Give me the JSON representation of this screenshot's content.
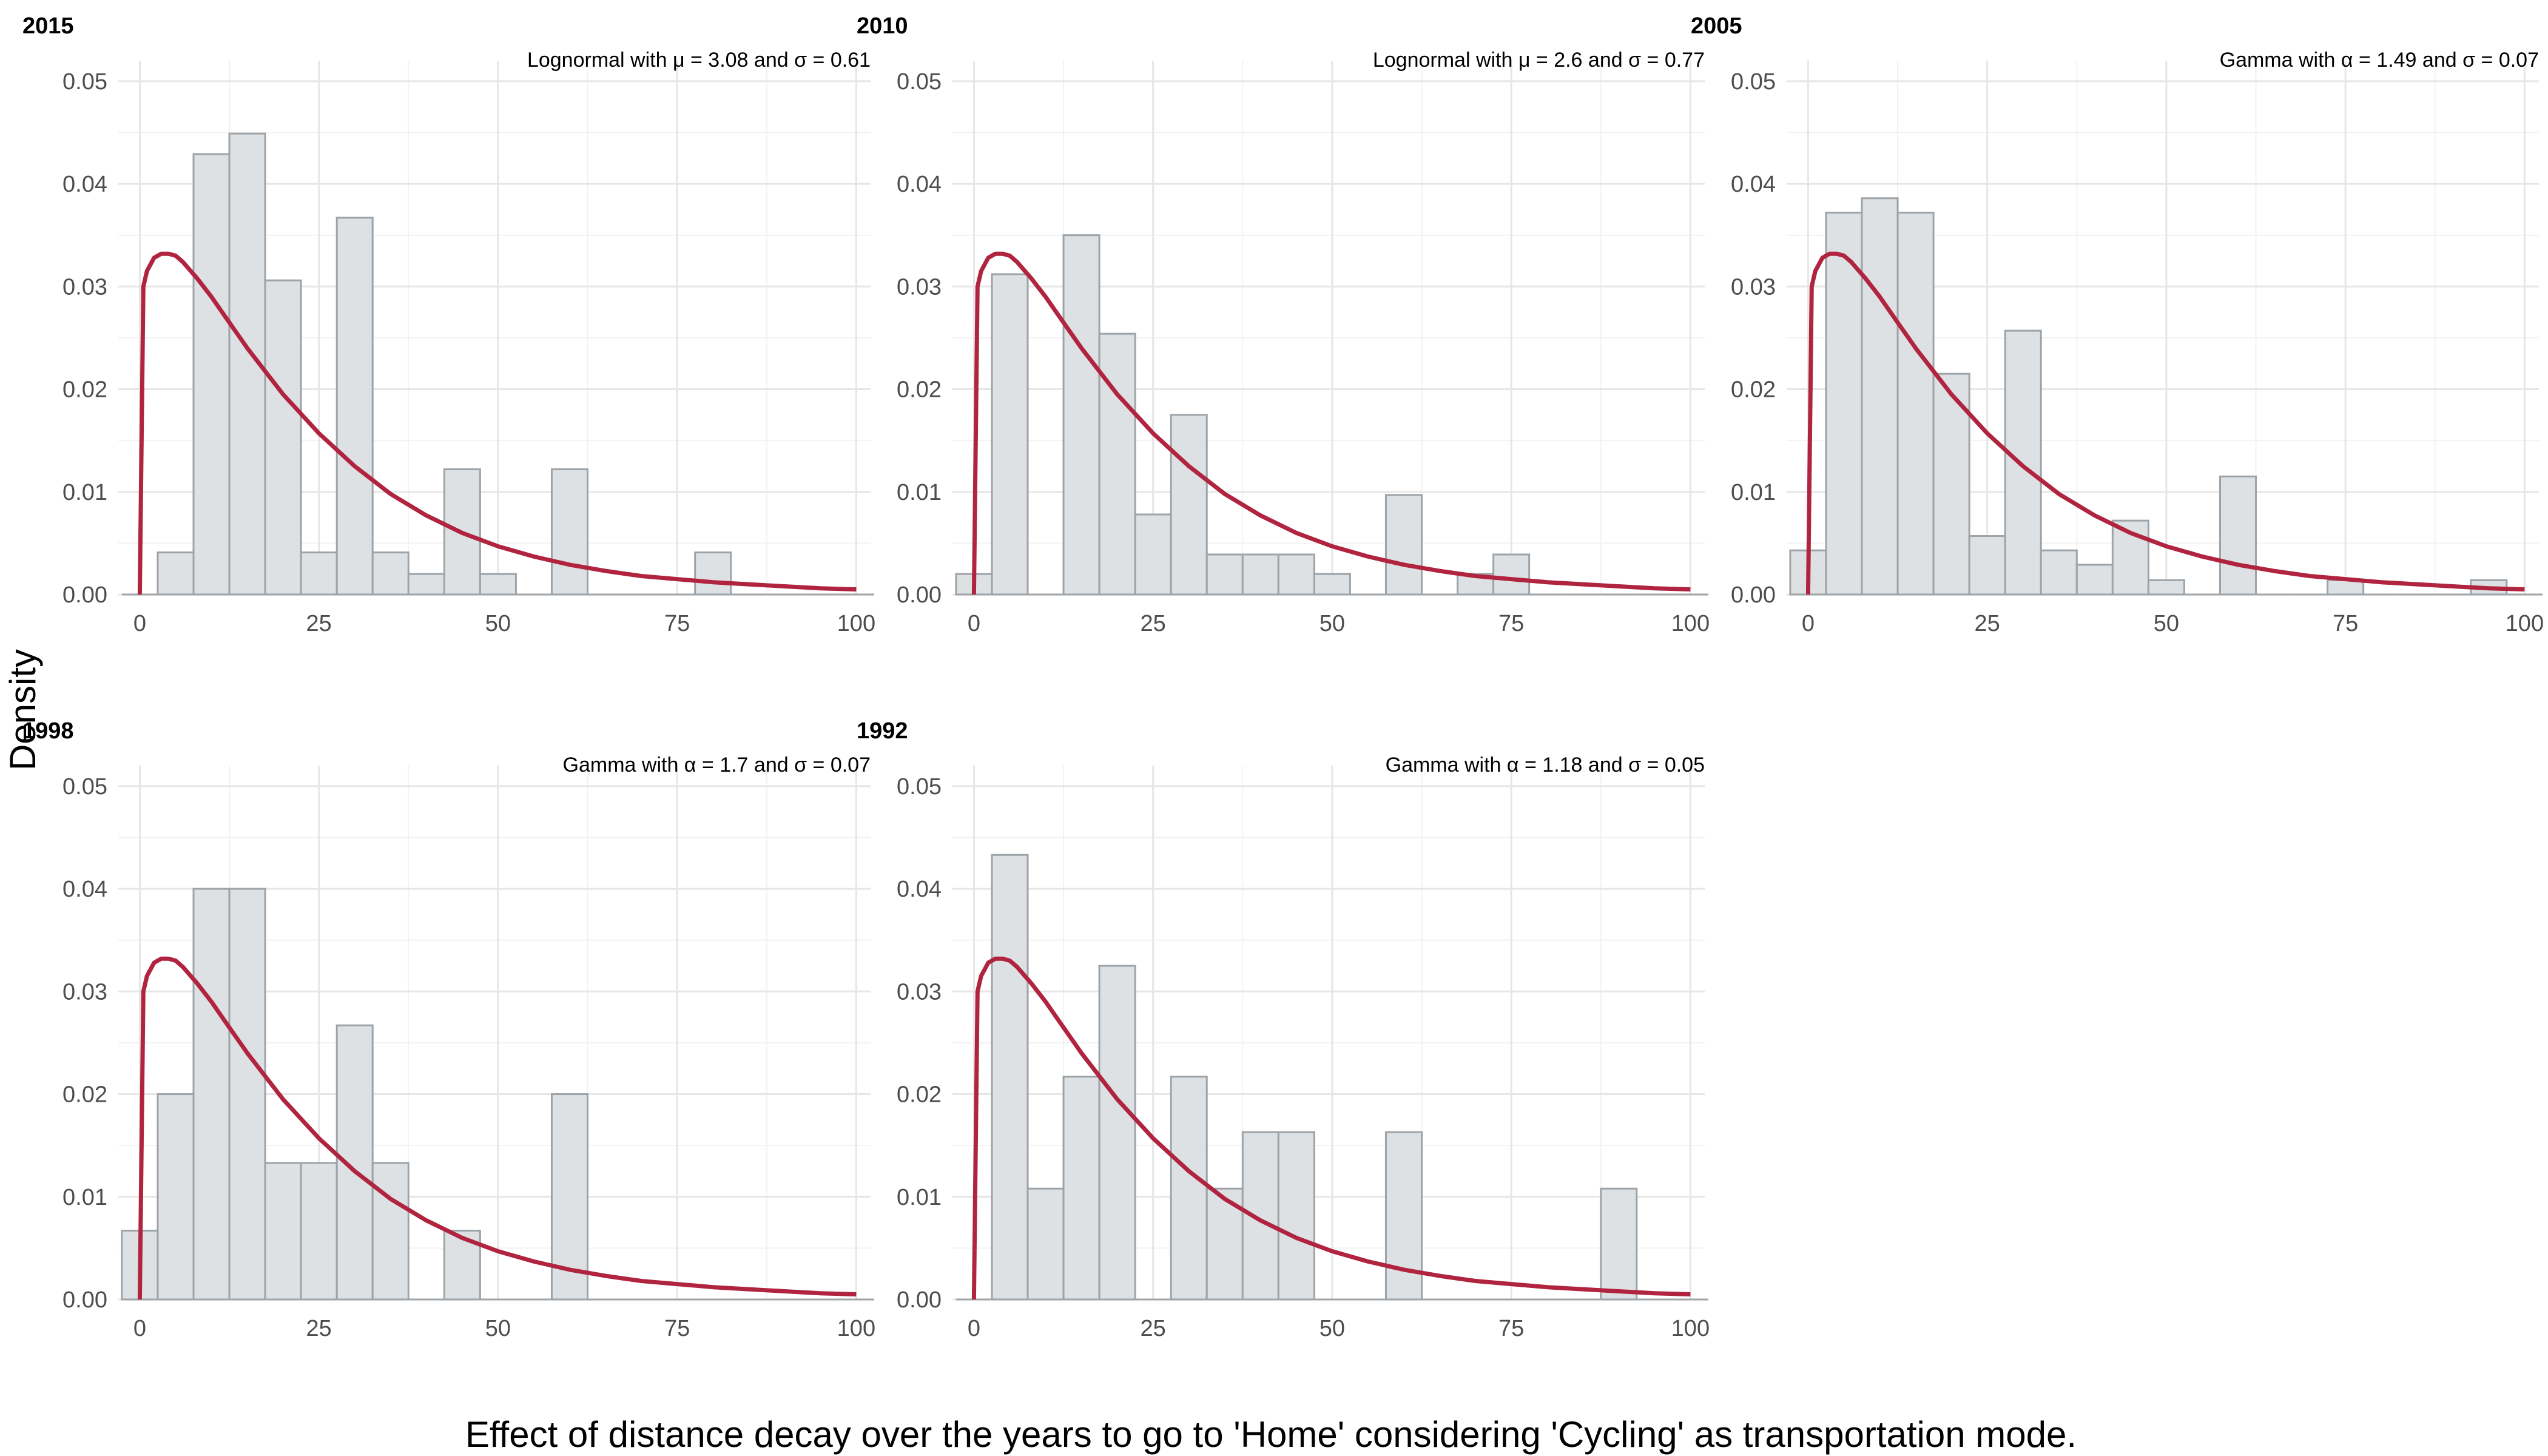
{
  "chart_data": {
    "type": "bar",
    "layout": "facets, 2 rows by 3 columns",
    "xlabel": "Effect of distance decay over the years to go to 'Home' considering 'Cycling' as transportation mode.",
    "ylabel": "Density",
    "xlim": [
      -3,
      102
    ],
    "ylim": [
      0,
      0.052
    ],
    "xticks": [
      0,
      25,
      50,
      75,
      100
    ],
    "xtick_labels": [
      "0",
      "25",
      "50",
      "75",
      "100"
    ],
    "yticks": [
      0,
      0.01,
      0.02,
      0.03,
      0.04,
      0.05
    ],
    "ytick_labels": [
      "0.00",
      "0.01",
      "0.02",
      "0.03",
      "0.04",
      "0.05"
    ],
    "grid": true,
    "bin_width": 5,
    "bin_starts": [
      -2.5,
      2.5,
      7.5,
      12.5,
      17.5,
      22.5,
      27.5,
      32.5,
      37.5,
      42.5,
      47.5,
      52.5,
      57.5,
      62.5,
      67.5,
      72.5,
      77.5,
      82.5,
      87.5,
      92.5,
      97.5
    ],
    "bar_color": "#dde1e3",
    "bar_edge_color": "#9da3a7",
    "curve_color": "#b0243f",
    "curve_x": [
      0,
      0.5,
      1,
      2,
      3,
      4,
      5,
      6,
      8,
      10,
      12,
      15,
      20,
      25,
      30,
      35,
      40,
      45,
      50,
      55,
      60,
      65,
      70,
      75,
      80,
      85,
      90,
      95,
      100
    ],
    "curve_y": [
      0,
      0.03,
      0.0315,
      0.0328,
      0.0332,
      0.0332,
      0.033,
      0.0324,
      0.0308,
      0.029,
      0.027,
      0.024,
      0.0195,
      0.0157,
      0.0125,
      0.0098,
      0.0077,
      0.006,
      0.0047,
      0.0037,
      0.0029,
      0.0023,
      0.0018,
      0.0015,
      0.0012,
      0.001,
      0.0008,
      0.0006,
      0.0005
    ],
    "panels": [
      {
        "title": "2015",
        "annotation": "Lognormal with μ = 3.08 and σ = 0.61",
        "values": [
          0,
          0.0041,
          0.0429,
          0.0449,
          0.0306,
          0.0041,
          0.0367,
          0.0041,
          0.002,
          0.0122,
          0.002,
          0,
          0.0122,
          0,
          0,
          0,
          0.0041,
          0,
          0,
          0,
          0
        ]
      },
      {
        "title": "2010",
        "annotation": "Lognormal with μ = 2.6 and σ = 0.77",
        "values": [
          0.002,
          0.0312,
          0,
          0.035,
          0.0254,
          0.0078,
          0.0175,
          0.0039,
          0.0039,
          0.0039,
          0.002,
          0,
          0.0097,
          0,
          0.002,
          0.0039,
          0,
          0,
          0,
          0,
          0
        ]
      },
      {
        "title": "2005",
        "annotation": "Gamma with α = 1.49 and σ = 0.07",
        "values": [
          0.0043,
          0.0372,
          0.0386,
          0.0372,
          0.0215,
          0.0057,
          0.0257,
          0.0043,
          0.0029,
          0.0072,
          0.0014,
          0,
          0.0115,
          0,
          0,
          0.0014,
          0,
          0,
          0,
          0.0014,
          0
        ]
      },
      {
        "title": "1998",
        "annotation": "Gamma with α = 1.7 and σ = 0.07",
        "values": [
          0.0067,
          0.02,
          0.04,
          0.04,
          0.0133,
          0.0133,
          0.0267,
          0.0133,
          0,
          0.0067,
          0,
          0,
          0.02,
          0,
          0,
          0,
          0,
          0,
          0,
          0,
          0
        ]
      },
      {
        "title": "1992",
        "annotation": "Gamma with α = 1.18 and σ = 0.05",
        "values": [
          0,
          0.0433,
          0.0108,
          0.0217,
          0.0325,
          0,
          0.0217,
          0.0108,
          0.0163,
          0.0163,
          0,
          0,
          0.0163,
          0,
          0,
          0,
          0,
          0,
          0.0108,
          0,
          0
        ]
      }
    ]
  }
}
